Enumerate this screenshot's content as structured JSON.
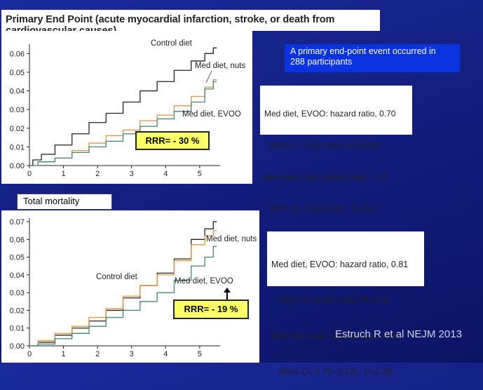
{
  "title": "Primary End Point (acute myocardial infarction, stroke, or death from cardiovascular causes)",
  "total_mortality_label": "Total mortality",
  "blue_box": {
    "line1": "A primary end-point event occurred in",
    "line2": "288 participants"
  },
  "stats_primary": {
    "line1": "Med diet, EVOO: hazard ratio, 0.70",
    "line2": "  (95% CI, 0.53–0.91); P=0.009",
    "line3": "Med diet, nuts: hazard ratio, 0.70",
    "line4": "  (95% CI, 0.53–0.94);  P=0.02"
  },
  "stats_mortality": {
    "line1": "Med diet, EVOO: hazard ratio, 0.81",
    "line2": "   (95% CI, 0.63–1.05); P=0.11",
    "line3": "Med diet, nuts: hazard ratio, 0.95",
    "line4": "   (95% CI, 0.73–1.23);  P=0.68"
  },
  "rrr_primary": "RRR= - 30 %",
  "rrr_mortality": "RRR= - 19 %",
  "citation": "Estruch R et al NEJM 2013",
  "colors": {
    "control": "#222222",
    "nuts": "#e8943a",
    "evoo": "#3f8a6a",
    "background": "#15238a",
    "blue_box": "#0a32e0",
    "rrr_box": "#ffff66"
  },
  "chart_data": [
    {
      "type": "line",
      "title": "",
      "xlabel": "",
      "ylabel": "",
      "xlim": [
        0,
        5.6
      ],
      "ylim": [
        0,
        0.065
      ],
      "x_ticks": [
        "0",
        "1",
        "2",
        "3",
        "4",
        "5"
      ],
      "y_ticks": [
        "0.00",
        "0.01",
        "0.02",
        "0.03",
        "0.04",
        "0.05",
        "0.06"
      ],
      "y_tick_values": [
        0,
        0.01,
        0.02,
        0.03,
        0.04,
        0.05,
        0.06
      ],
      "series": [
        {
          "name": "Control diet",
          "color_key": "control",
          "x": [
            0,
            0.2,
            0.5,
            1.0,
            1.5,
            2.0,
            2.5,
            3.0,
            3.5,
            4.0,
            4.5,
            5.0,
            5.3,
            5.5
          ],
          "y": [
            0,
            0.003,
            0.006,
            0.011,
            0.017,
            0.023,
            0.028,
            0.034,
            0.04,
            0.045,
            0.051,
            0.056,
            0.06,
            0.063
          ]
        },
        {
          "name": "Med diet, nuts",
          "color_key": "nuts",
          "x": [
            0,
            0.5,
            1.0,
            1.5,
            2.0,
            2.5,
            3.0,
            3.5,
            4.0,
            4.5,
            5.0,
            5.3,
            5.5
          ],
          "y": [
            0,
            0.002,
            0.004,
            0.008,
            0.012,
            0.016,
            0.019,
            0.024,
            0.027,
            0.032,
            0.037,
            0.042,
            0.046
          ]
        },
        {
          "name": "Med diet, EVOO",
          "color_key": "evoo",
          "x": [
            0,
            0.5,
            1.0,
            1.5,
            2.0,
            2.5,
            3.0,
            3.5,
            4.0,
            4.5,
            5.0,
            5.3,
            5.5
          ],
          "y": [
            0,
            0.002,
            0.004,
            0.007,
            0.01,
            0.013,
            0.017,
            0.021,
            0.025,
            0.029,
            0.034,
            0.041,
            0.045
          ]
        }
      ],
      "series_labels": [
        "Control diet",
        "Med diet, nuts",
        "Med diet, EVOO"
      ]
    },
    {
      "type": "line",
      "title": "",
      "xlabel": "",
      "ylabel": "",
      "xlim": [
        0,
        5.6
      ],
      "ylim": [
        0,
        0.072
      ],
      "x_ticks": [
        "0",
        "1",
        "2",
        "3",
        "4",
        "5"
      ],
      "y_ticks": [
        "0.00",
        "0.01",
        "0.02",
        "0.03",
        "0.04",
        "0.05",
        "0.06",
        "0.07"
      ],
      "y_tick_values": [
        0,
        0.01,
        0.02,
        0.03,
        0.04,
        0.05,
        0.06,
        0.07
      ],
      "series": [
        {
          "name": "Control diet",
          "color_key": "control",
          "x": [
            0,
            0.5,
            1.0,
            1.5,
            2.0,
            2.5,
            3.0,
            3.5,
            4.0,
            4.5,
            5.0,
            5.3,
            5.5
          ],
          "y": [
            0,
            0.002,
            0.006,
            0.01,
            0.014,
            0.02,
            0.027,
            0.034,
            0.041,
            0.049,
            0.06,
            0.066,
            0.07
          ]
        },
        {
          "name": "Med diet, nuts",
          "color_key": "nuts",
          "x": [
            0,
            0.5,
            1.0,
            1.5,
            2.0,
            2.5,
            3.0,
            3.5,
            4.0,
            4.5,
            5.0,
            5.3,
            5.5
          ],
          "y": [
            0,
            0.003,
            0.007,
            0.011,
            0.016,
            0.021,
            0.028,
            0.034,
            0.04,
            0.048,
            0.057,
            0.062,
            0.065
          ]
        },
        {
          "name": "Med diet, EVOO",
          "color_key": "evoo",
          "x": [
            0,
            0.5,
            1.0,
            1.5,
            2.0,
            2.5,
            3.0,
            3.5,
            4.0,
            4.5,
            5.0,
            5.3,
            5.5
          ],
          "y": [
            0,
            0.001,
            0.004,
            0.007,
            0.011,
            0.016,
            0.02,
            0.025,
            0.03,
            0.037,
            0.045,
            0.05,
            0.056
          ]
        }
      ],
      "series_labels": [
        "Med diet, nuts",
        "Control diet",
        "Med diet, EVOO"
      ]
    }
  ]
}
